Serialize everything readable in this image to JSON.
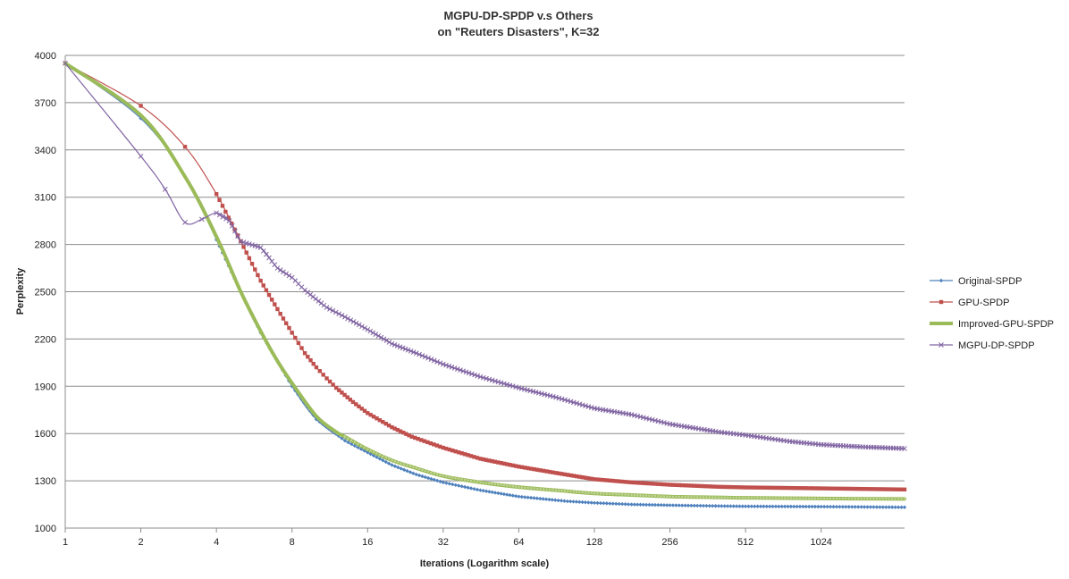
{
  "chart_data": {
    "type": "line",
    "title": [
      "MGPU-DP-SPDP v.s Others",
      "on \"Reuters Disasters\", K=32"
    ],
    "xlabel": "Iterations (Logarithm scale)",
    "ylabel": "Perplexity",
    "x_scale": "log2",
    "xlim": [
      1,
      2200
    ],
    "ylim": [
      1000,
      4000
    ],
    "y_ticks": [
      1000,
      1300,
      1600,
      1900,
      2200,
      2500,
      2800,
      3100,
      3400,
      3700,
      4000
    ],
    "x_ticks": [
      1,
      2,
      4,
      8,
      16,
      32,
      64,
      128,
      256,
      512,
      1024
    ],
    "grid": "horizontal",
    "legend_position": "right",
    "series": [
      {
        "name": "Original-SPDP",
        "color": "#4f81bd",
        "marker": "diamond",
        "points": [
          [
            1,
            3950
          ],
          [
            2,
            3600
          ],
          [
            3,
            3230
          ],
          [
            4,
            2830
          ],
          [
            5,
            2500
          ],
          [
            6,
            2240
          ],
          [
            8,
            1900
          ],
          [
            10,
            1690
          ],
          [
            13,
            1555
          ],
          [
            16,
            1480
          ],
          [
            20,
            1400
          ],
          [
            25,
            1340
          ],
          [
            32,
            1290
          ],
          [
            45,
            1240
          ],
          [
            64,
            1200
          ],
          [
            100,
            1170
          ],
          [
            128,
            1160
          ],
          [
            180,
            1150
          ],
          [
            256,
            1145
          ],
          [
            400,
            1140
          ],
          [
            512,
            1138
          ],
          [
            1024,
            1136
          ],
          [
            2200,
            1132
          ]
        ]
      },
      {
        "name": "GPU-SPDP",
        "color": "#c0504d",
        "marker": "square",
        "points": [
          [
            1,
            3950
          ],
          [
            2,
            3680
          ],
          [
            3,
            3420
          ],
          [
            4,
            3120
          ],
          [
            5,
            2820
          ],
          [
            6,
            2570
          ],
          [
            7,
            2390
          ],
          [
            8,
            2240
          ],
          [
            9,
            2110
          ],
          [
            10,
            2020
          ],
          [
            11,
            1950
          ],
          [
            12,
            1890
          ],
          [
            14,
            1800
          ],
          [
            16,
            1730
          ],
          [
            20,
            1640
          ],
          [
            24,
            1580
          ],
          [
            32,
            1510
          ],
          [
            45,
            1440
          ],
          [
            64,
            1390
          ],
          [
            90,
            1350
          ],
          [
            128,
            1310
          ],
          [
            180,
            1290
          ],
          [
            256,
            1275
          ],
          [
            400,
            1262
          ],
          [
            512,
            1258
          ],
          [
            1024,
            1252
          ],
          [
            2200,
            1245
          ]
        ]
      },
      {
        "name": "Improved-GPU-SPDP",
        "color": "#9bbb59",
        "marker": "none",
        "points": [
          [
            1,
            3950
          ],
          [
            2,
            3620
          ],
          [
            3,
            3230
          ],
          [
            4,
            2850
          ],
          [
            5,
            2500
          ],
          [
            6,
            2250
          ],
          [
            7,
            2060
          ],
          [
            8,
            1920
          ],
          [
            10,
            1710
          ],
          [
            12,
            1610
          ],
          [
            13,
            1580
          ],
          [
            16,
            1500
          ],
          [
            20,
            1430
          ],
          [
            25,
            1380
          ],
          [
            32,
            1330
          ],
          [
            45,
            1290
          ],
          [
            64,
            1260
          ],
          [
            90,
            1240
          ],
          [
            128,
            1220
          ],
          [
            180,
            1210
          ],
          [
            256,
            1200
          ],
          [
            400,
            1195
          ],
          [
            512,
            1192
          ],
          [
            1024,
            1188
          ],
          [
            2200,
            1185
          ]
        ]
      },
      {
        "name": "MGPU-DP-SPDP",
        "color": "#8064a2",
        "marker": "x",
        "points": [
          [
            1,
            3950
          ],
          [
            2,
            3360
          ],
          [
            2.5,
            3150
          ],
          [
            3,
            2940
          ],
          [
            3.5,
            2960
          ],
          [
            4,
            3000
          ],
          [
            4.5,
            2950
          ],
          [
            5,
            2820
          ],
          [
            6,
            2780
          ],
          [
            7,
            2650
          ],
          [
            8,
            2590
          ],
          [
            9,
            2510
          ],
          [
            11,
            2400
          ],
          [
            13,
            2340
          ],
          [
            16,
            2260
          ],
          [
            20,
            2170
          ],
          [
            25,
            2110
          ],
          [
            32,
            2040
          ],
          [
            45,
            1960
          ],
          [
            64,
            1890
          ],
          [
            90,
            1830
          ],
          [
            128,
            1760
          ],
          [
            180,
            1720
          ],
          [
            256,
            1660
          ],
          [
            400,
            1610
          ],
          [
            512,
            1590
          ],
          [
            768,
            1550
          ],
          [
            1024,
            1530
          ],
          [
            1500,
            1515
          ],
          [
            2200,
            1505
          ]
        ]
      }
    ]
  }
}
